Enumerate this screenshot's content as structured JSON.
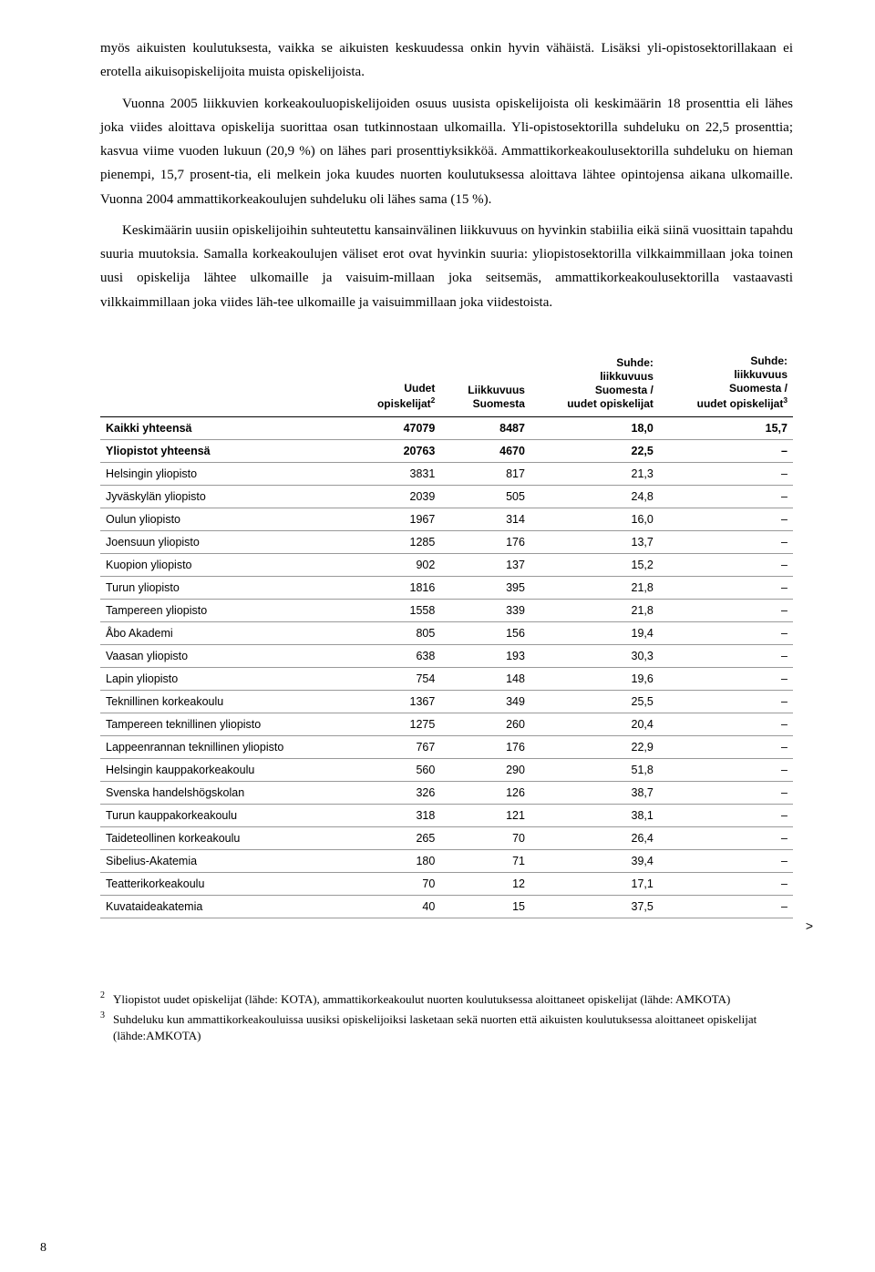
{
  "paragraphs": {
    "p1": "myös aikuisten koulutuksesta, vaikka se aikuisten keskuudessa onkin hyvin vähäistä. Lisäksi yli-opistosektorillakaan ei erotella aikuisopiskelijoita muista opiskelijoista.",
    "p2": "Vuonna 2005 liikkuvien korkeakouluopiskelijoiden osuus uusista opiskelijoista oli keskimäärin 18 prosenttia eli lähes joka viides aloittava opiskelija suorittaa osan tutkinnostaan ulkomailla. Yli-opistosektorilla suhdeluku on 22,5 prosenttia; kasvua viime vuoden lukuun (20,9 %) on lähes pari prosenttiyksikköä. Ammattikorkeakoulusektorilla suhdeluku on hieman pienempi, 15,7 prosent-tia, eli melkein joka kuudes nuorten koulutuksessa aloittava lähtee opintojensa aikana ulkomaille. Vuonna 2004 ammattikorkeakoulujen suhdeluku oli lähes sama (15 %).",
    "p3": "Keskimäärin uusiin opiskelijoihin suhteutettu kansainvälinen liikkuvuus on hyvinkin stabiilia eikä siinä vuosittain tapahdu suuria muutoksia. Samalla korkeakoulujen väliset erot ovat hyvinkin suuria: yliopistosektorilla vilkkaimmillaan joka toinen uusi opiskelija lähtee ulkomaille ja vaisuim-millaan joka seitsemäs, ammattikorkeakoulusektorilla vastaavasti vilkkaimmillaan joka viides läh-tee ulkomaille ja vaisuimmillaan joka viidestoista."
  },
  "table": {
    "headers": {
      "col1": "",
      "col2_line1": "Uudet",
      "col2_line2": "opiskelijat",
      "col2_sup": "2",
      "col3_line1": "Liikkuvuus",
      "col3_line2": "Suomesta",
      "col4_line1": "Suhde:",
      "col4_line2": "liikkuvuus",
      "col4_line3": "Suomesta /",
      "col4_line4": "uudet opiskelijat",
      "col5_line1": "Suhde:",
      "col5_line2": "liikkuvuus",
      "col5_line3": "Suomesta /",
      "col5_line4": "uudet opiskelijat",
      "col5_sup": "3"
    },
    "rows": [
      {
        "name": "Kaikki yhteensä",
        "c2": "47079",
        "c3": "8487",
        "c4": "18,0",
        "c5": "15,7",
        "bold": true
      },
      {
        "name": "Yliopistot yhteensä",
        "c2": "20763",
        "c3": "4670",
        "c4": "22,5",
        "c5": "–",
        "bold": true
      },
      {
        "name": "Helsingin yliopisto",
        "c2": "3831",
        "c3": "817",
        "c4": "21,3",
        "c5": "–"
      },
      {
        "name": "Jyväskylän yliopisto",
        "c2": "2039",
        "c3": "505",
        "c4": "24,8",
        "c5": "–"
      },
      {
        "name": "Oulun yliopisto",
        "c2": "1967",
        "c3": "314",
        "c4": "16,0",
        "c5": "–"
      },
      {
        "name": "Joensuun yliopisto",
        "c2": "1285",
        "c3": "176",
        "c4": "13,7",
        "c5": "–"
      },
      {
        "name": "Kuopion yliopisto",
        "c2": "902",
        "c3": "137",
        "c4": "15,2",
        "c5": "–"
      },
      {
        "name": "Turun yliopisto",
        "c2": "1816",
        "c3": "395",
        "c4": "21,8",
        "c5": "–"
      },
      {
        "name": "Tampereen yliopisto",
        "c2": "1558",
        "c3": "339",
        "c4": "21,8",
        "c5": "–"
      },
      {
        "name": "Åbo Akademi",
        "c2": "805",
        "c3": "156",
        "c4": "19,4",
        "c5": "–"
      },
      {
        "name": "Vaasan yliopisto",
        "c2": "638",
        "c3": "193",
        "c4": "30,3",
        "c5": "–"
      },
      {
        "name": "Lapin yliopisto",
        "c2": "754",
        "c3": "148",
        "c4": "19,6",
        "c5": "–"
      },
      {
        "name": "Teknillinen korkeakoulu",
        "c2": "1367",
        "c3": "349",
        "c4": "25,5",
        "c5": "–"
      },
      {
        "name": "Tampereen teknillinen yliopisto",
        "c2": "1275",
        "c3": "260",
        "c4": "20,4",
        "c5": "–"
      },
      {
        "name": "Lappeenrannan teknillinen yliopisto",
        "c2": "767",
        "c3": "176",
        "c4": "22,9",
        "c5": "–"
      },
      {
        "name": "Helsingin kauppakorkeakoulu",
        "c2": "560",
        "c3": "290",
        "c4": "51,8",
        "c5": "–"
      },
      {
        "name": "Svenska handelshögskolan",
        "c2": "326",
        "c3": "126",
        "c4": "38,7",
        "c5": "–"
      },
      {
        "name": "Turun kauppakorkeakoulu",
        "c2": "318",
        "c3": "121",
        "c4": "38,1",
        "c5": "–"
      },
      {
        "name": "Taideteollinen korkeakoulu",
        "c2": "265",
        "c3": "70",
        "c4": "26,4",
        "c5": "–"
      },
      {
        "name": "Sibelius-Akatemia",
        "c2": "180",
        "c3": "71",
        "c4": "39,4",
        "c5": "–"
      },
      {
        "name": "Teatterikorkeakoulu",
        "c2": "70",
        "c3": "12",
        "c4": "17,1",
        "c5": "–"
      },
      {
        "name": "Kuvataideakatemia",
        "c2": "40",
        "c3": "15",
        "c4": "37,5",
        "c5": "–"
      }
    ]
  },
  "footnotes": {
    "f2_sup": "2",
    "f2_text": "Yliopistot uudet opiskelijat (lähde: KOTA), ammattikorkeakoulut nuorten koulutuksessa aloittaneet opiskelijat (lähde: AMKOTA)",
    "f3_sup": "3",
    "f3_text": "Suhdeluku kun ammattikorkeakouluissa uusiksi opiskelijoiksi lasketaan sekä nuorten että aikuisten koulutuksessa aloittaneet opiskelijat (lähde:AMKOTA)"
  },
  "page_number": "8",
  "continue_arrow": ">"
}
